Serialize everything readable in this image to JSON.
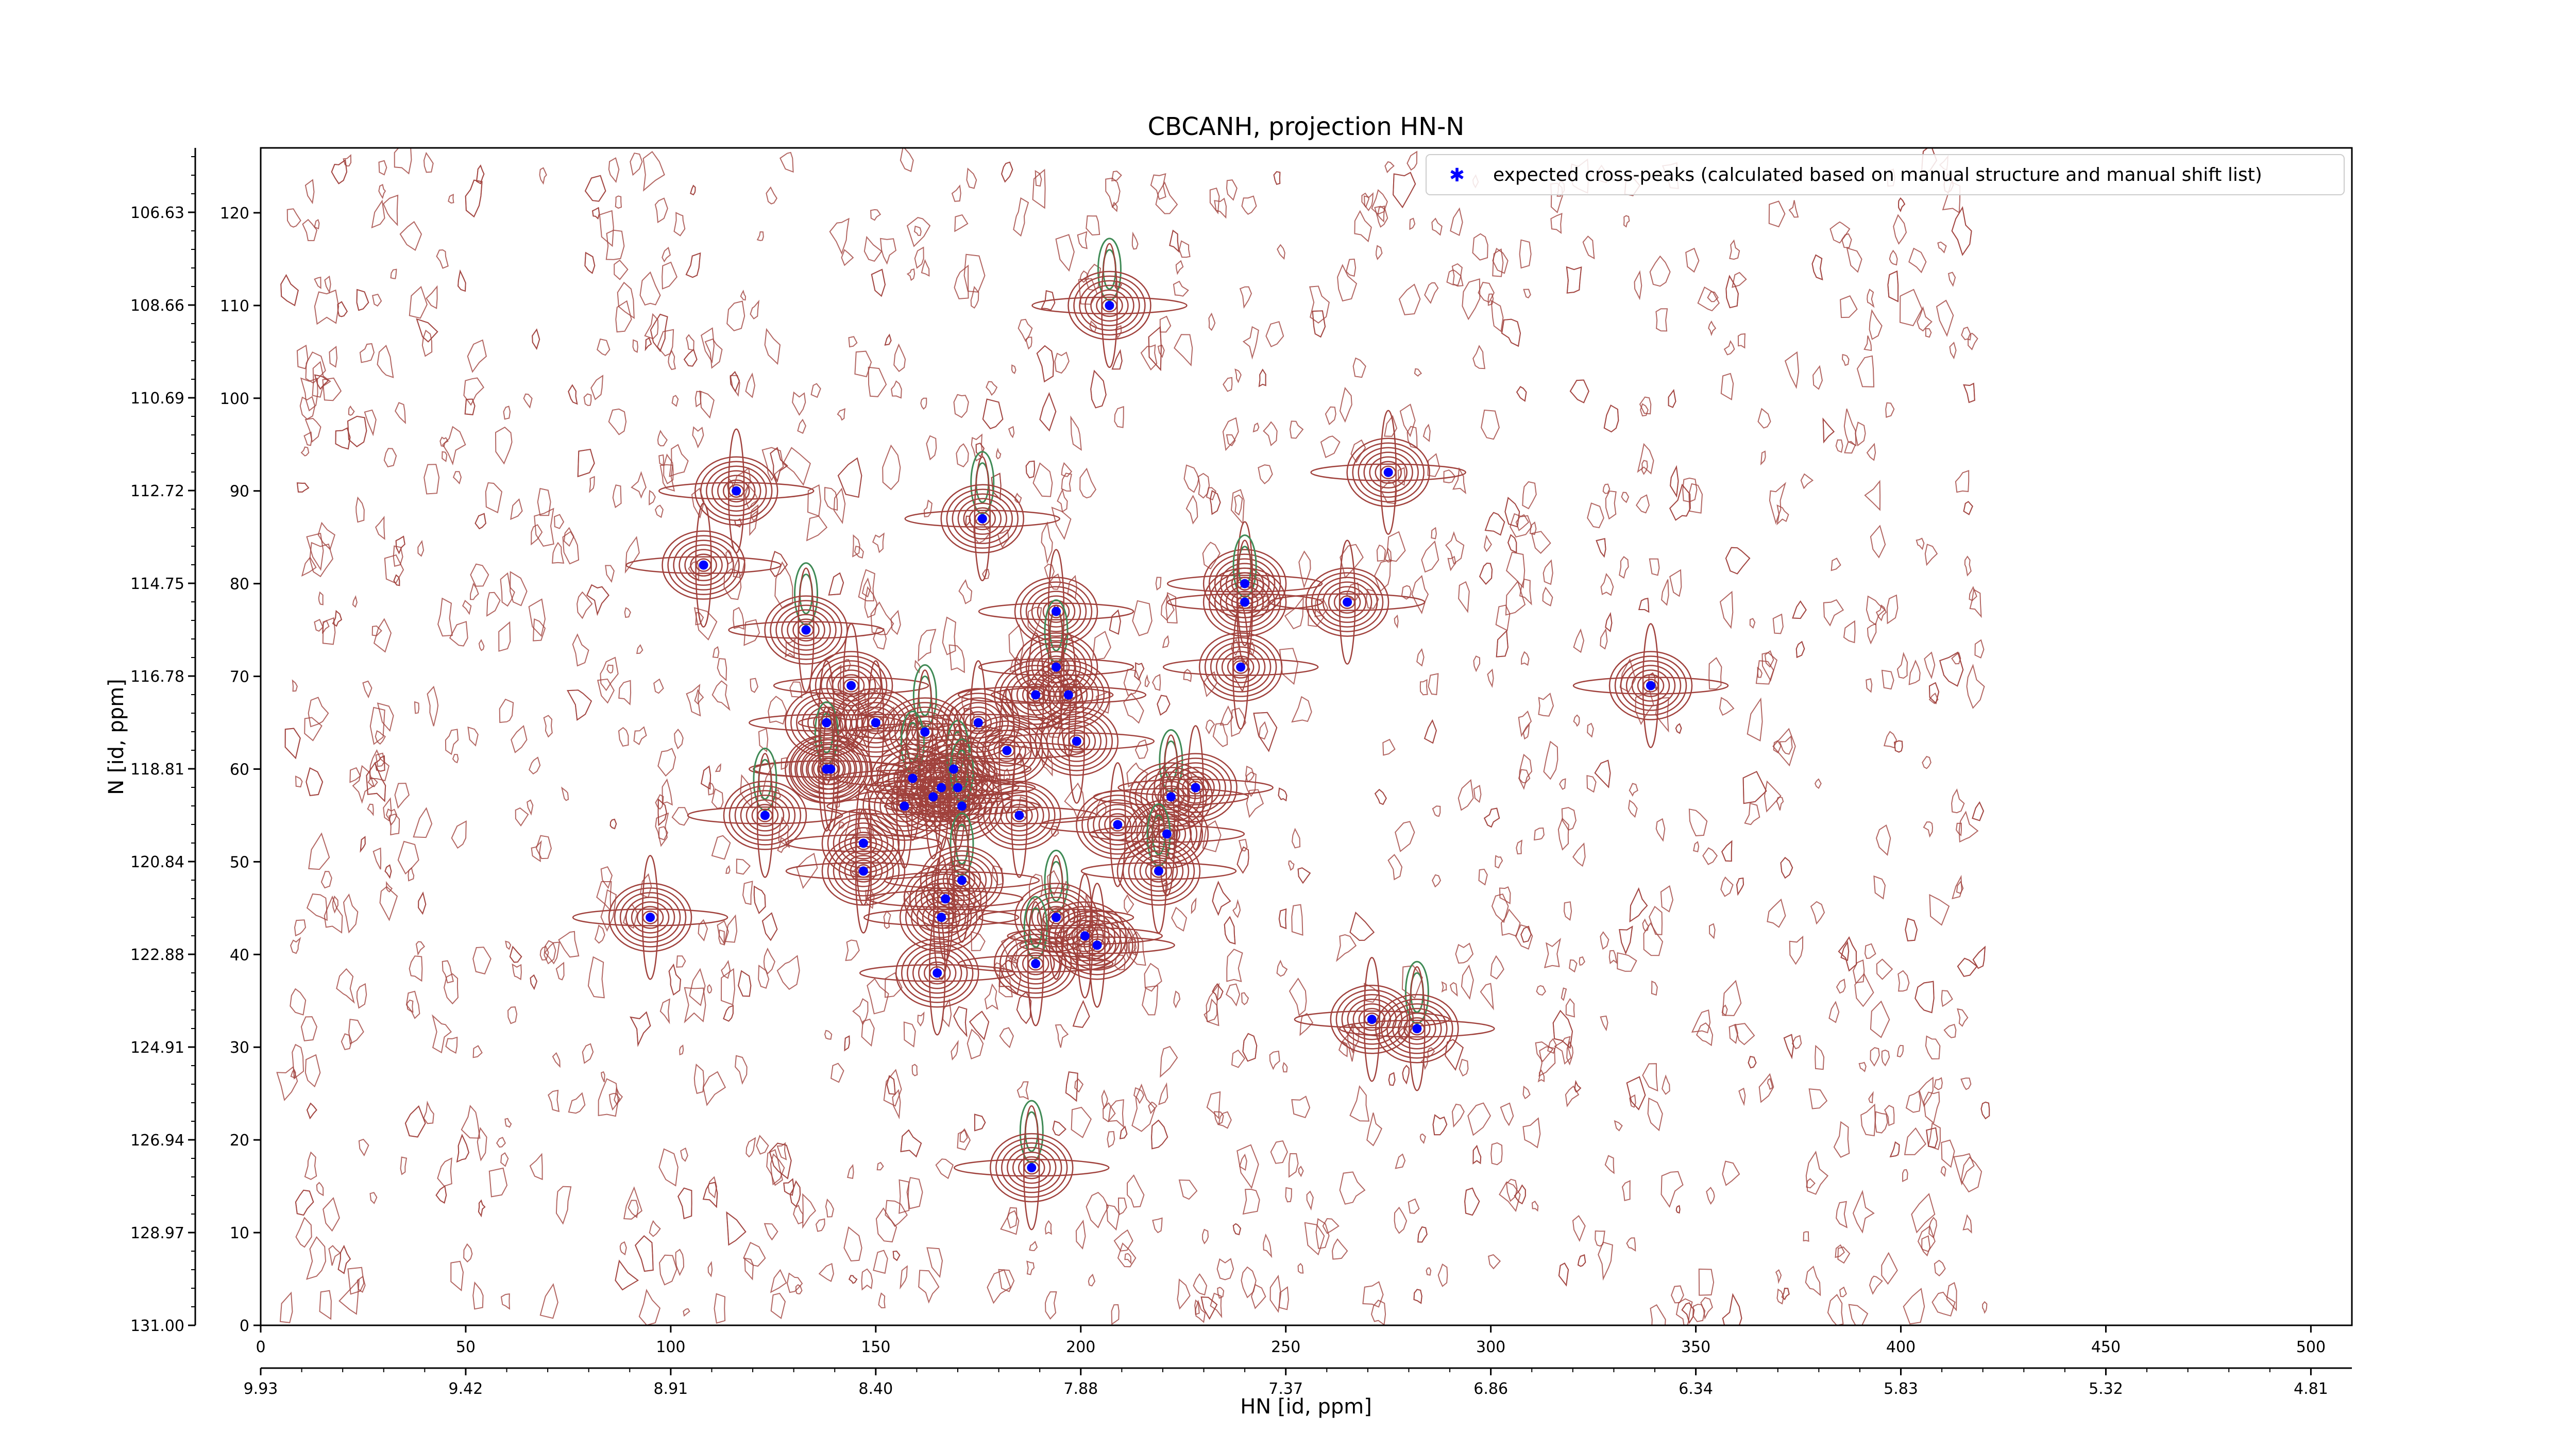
{
  "chart_data": {
    "type": "scatter",
    "title": "CBCANH, projection HN-N",
    "xlabel": "HN [id, ppm]",
    "ylabel": "N [id, ppm]",
    "x_index_range": [
      0,
      510
    ],
    "y_index_range": [
      0,
      127
    ],
    "x_index_ticks": [
      "0",
      "50",
      "100",
      "150",
      "200",
      "250",
      "300",
      "350",
      "400",
      "450",
      "500"
    ],
    "x_ppm_ticks": [
      "9.93",
      "9.42",
      "8.91",
      "8.40",
      "7.88",
      "7.37",
      "6.86",
      "6.34",
      "5.83",
      "5.32",
      "4.81"
    ],
    "y_index_ticks": [
      "120",
      "110",
      "100",
      "90",
      "80",
      "70",
      "60",
      "50",
      "40",
      "30",
      "20",
      "10",
      "0"
    ],
    "y_ppm_ticks": [
      "106.63",
      "108.66",
      "110.69",
      "112.72",
      "114.75",
      "116.78",
      "118.81",
      "120.84",
      "122.88",
      "124.91",
      "126.94",
      "128.97",
      "131.00"
    ],
    "legend": {
      "position": "top-right",
      "entries": [
        "expected cross-peaks (calculated based on manual structure and manual shift list)"
      ]
    },
    "colors": {
      "marker": "#0000ff",
      "positive_contours": "#a0413c",
      "negative_contours": "#3f8a55"
    },
    "series": [
      {
        "name": "expected cross-peaks (calculated based on manual structure and manual shift list)",
        "x": [
          207,
          116,
          108,
          176,
          194,
          240,
          240,
          265,
          275,
          133,
          144,
          138,
          138,
          150,
          139,
          162,
          175,
          189,
          194,
          197,
          199,
          159,
          157,
          166,
          170,
          169,
          164,
          171,
          185,
          182,
          123,
          147,
          147,
          171,
          167,
          166,
          194,
          201,
          204,
          189,
          165,
          209,
          222,
          228,
          221,
          219,
          95,
          271,
          282,
          339,
          239,
          188
        ],
        "y": [
          110,
          90,
          82,
          87,
          77,
          80,
          78,
          78,
          92,
          75,
          69,
          65,
          60,
          65,
          60,
          64,
          65,
          68,
          71,
          68,
          63,
          59,
          56,
          58,
          58,
          60,
          57,
          56,
          55,
          62,
          55,
          52,
          49,
          48,
          46,
          44,
          44,
          42,
          41,
          39,
          38,
          54,
          57,
          58,
          53,
          49,
          44,
          33,
          32,
          69,
          71,
          17
        ]
      }
    ]
  }
}
